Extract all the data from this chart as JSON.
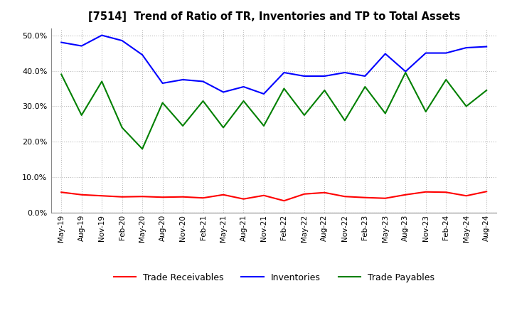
{
  "title": "[7514]  Trend of Ratio of TR, Inventories and TP to Total Assets",
  "x_labels": [
    "May-19",
    "Aug-19",
    "Nov-19",
    "Feb-20",
    "May-20",
    "Aug-20",
    "Nov-20",
    "Feb-21",
    "May-21",
    "Aug-21",
    "Nov-21",
    "Feb-22",
    "May-22",
    "Aug-22",
    "Nov-22",
    "Feb-23",
    "May-23",
    "Aug-23",
    "Nov-23",
    "Feb-24",
    "May-24",
    "Aug-24"
  ],
  "trade_receivables": [
    5.8,
    5.1,
    4.8,
    4.5,
    4.6,
    4.4,
    4.5,
    4.2,
    5.1,
    3.9,
    4.9,
    3.4,
    5.3,
    5.7,
    4.6,
    4.3,
    4.1,
    5.1,
    5.9,
    5.8,
    4.8,
    6.0
  ],
  "inventories": [
    48.0,
    47.0,
    50.0,
    48.5,
    44.5,
    36.5,
    37.5,
    37.0,
    34.0,
    35.5,
    33.5,
    39.5,
    38.5,
    38.5,
    39.5,
    38.5,
    44.8,
    39.8,
    45.0,
    45.0,
    46.5,
    46.8
  ],
  "trade_payables": [
    39.0,
    27.5,
    37.0,
    24.0,
    18.0,
    31.0,
    24.5,
    31.5,
    24.0,
    31.5,
    24.5,
    35.0,
    27.5,
    34.5,
    26.0,
    35.5,
    28.0,
    39.5,
    28.5,
    37.5,
    30.0,
    34.5
  ],
  "tr_color": "#ff0000",
  "inv_color": "#0000ff",
  "tp_color": "#008000",
  "ylim": [
    0,
    52
  ],
  "yticks": [
    0,
    10,
    20,
    30,
    40,
    50
  ],
  "background_color": "#ffffff",
  "grid_color": "#aaaaaa"
}
